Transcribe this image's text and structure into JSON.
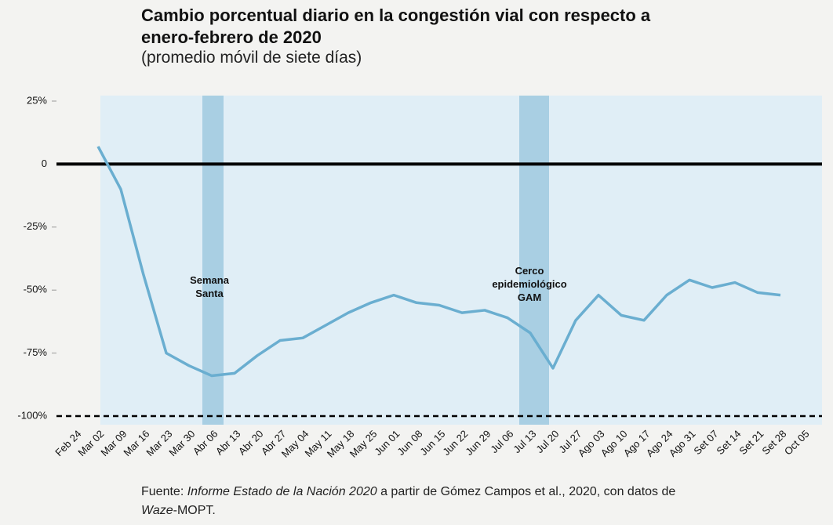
{
  "chart_data": {
    "type": "line",
    "title": "Cambio porcentual diario en la congestión vial con respecto a enero-febrero de 2020",
    "subtitle": "(promedio móvil de siete días)",
    "categories": [
      "Feb 24",
      "Mar 02",
      "Mar 09",
      "Mar 16",
      "Mar 23",
      "Mar 30",
      "Abr 06",
      "Abr 13",
      "Abr 20",
      "Abr 27",
      "May 04",
      "May 11",
      "May 18",
      "May 25",
      "Jun 01",
      "Jun 08",
      "Jun 15",
      "Jun 22",
      "Jun 29",
      "Jul 06",
      "Jul 13",
      "Jul 20",
      "Jul 27",
      "Ago 03",
      "Ago 10",
      "Ago 17",
      "Ago 24",
      "Ago 31",
      "Set 07",
      "Set 14",
      "Set 21",
      "Set 28",
      "Oct 05"
    ],
    "series": [
      {
        "name": "Congestión vial",
        "color": "#6aaed0",
        "values": [
          null,
          7,
          -10,
          -44,
          -75,
          -80,
          -84,
          -83,
          -76,
          -70,
          -69,
          -64,
          -59,
          -55,
          -52,
          -55,
          -56,
          -59,
          -58,
          -61,
          -67,
          -81,
          -62,
          -52,
          -60,
          -62,
          -52,
          -46,
          -49,
          -47,
          -51,
          -52,
          null
        ]
      }
    ],
    "ylim": [
      -100,
      25
    ],
    "yticks": [
      {
        "value": -100,
        "label": "-100%"
      },
      {
        "value": -75,
        "label": "-75%"
      },
      {
        "value": -50,
        "label": "-50%"
      },
      {
        "value": -25,
        "label": "-25%"
      },
      0,
      {
        "value": 25,
        "label": "25%"
      }
    ],
    "annotations": [
      "Semana Santa",
      "Cerco epidemiológico GAM"
    ],
    "source": [
      "Fuente: ",
      "Informe Estado de la Nación 2020",
      " a partir de Gómez Campos et al., 2020, con datos de ",
      "Waze",
      "-MOPT."
    ]
  }
}
